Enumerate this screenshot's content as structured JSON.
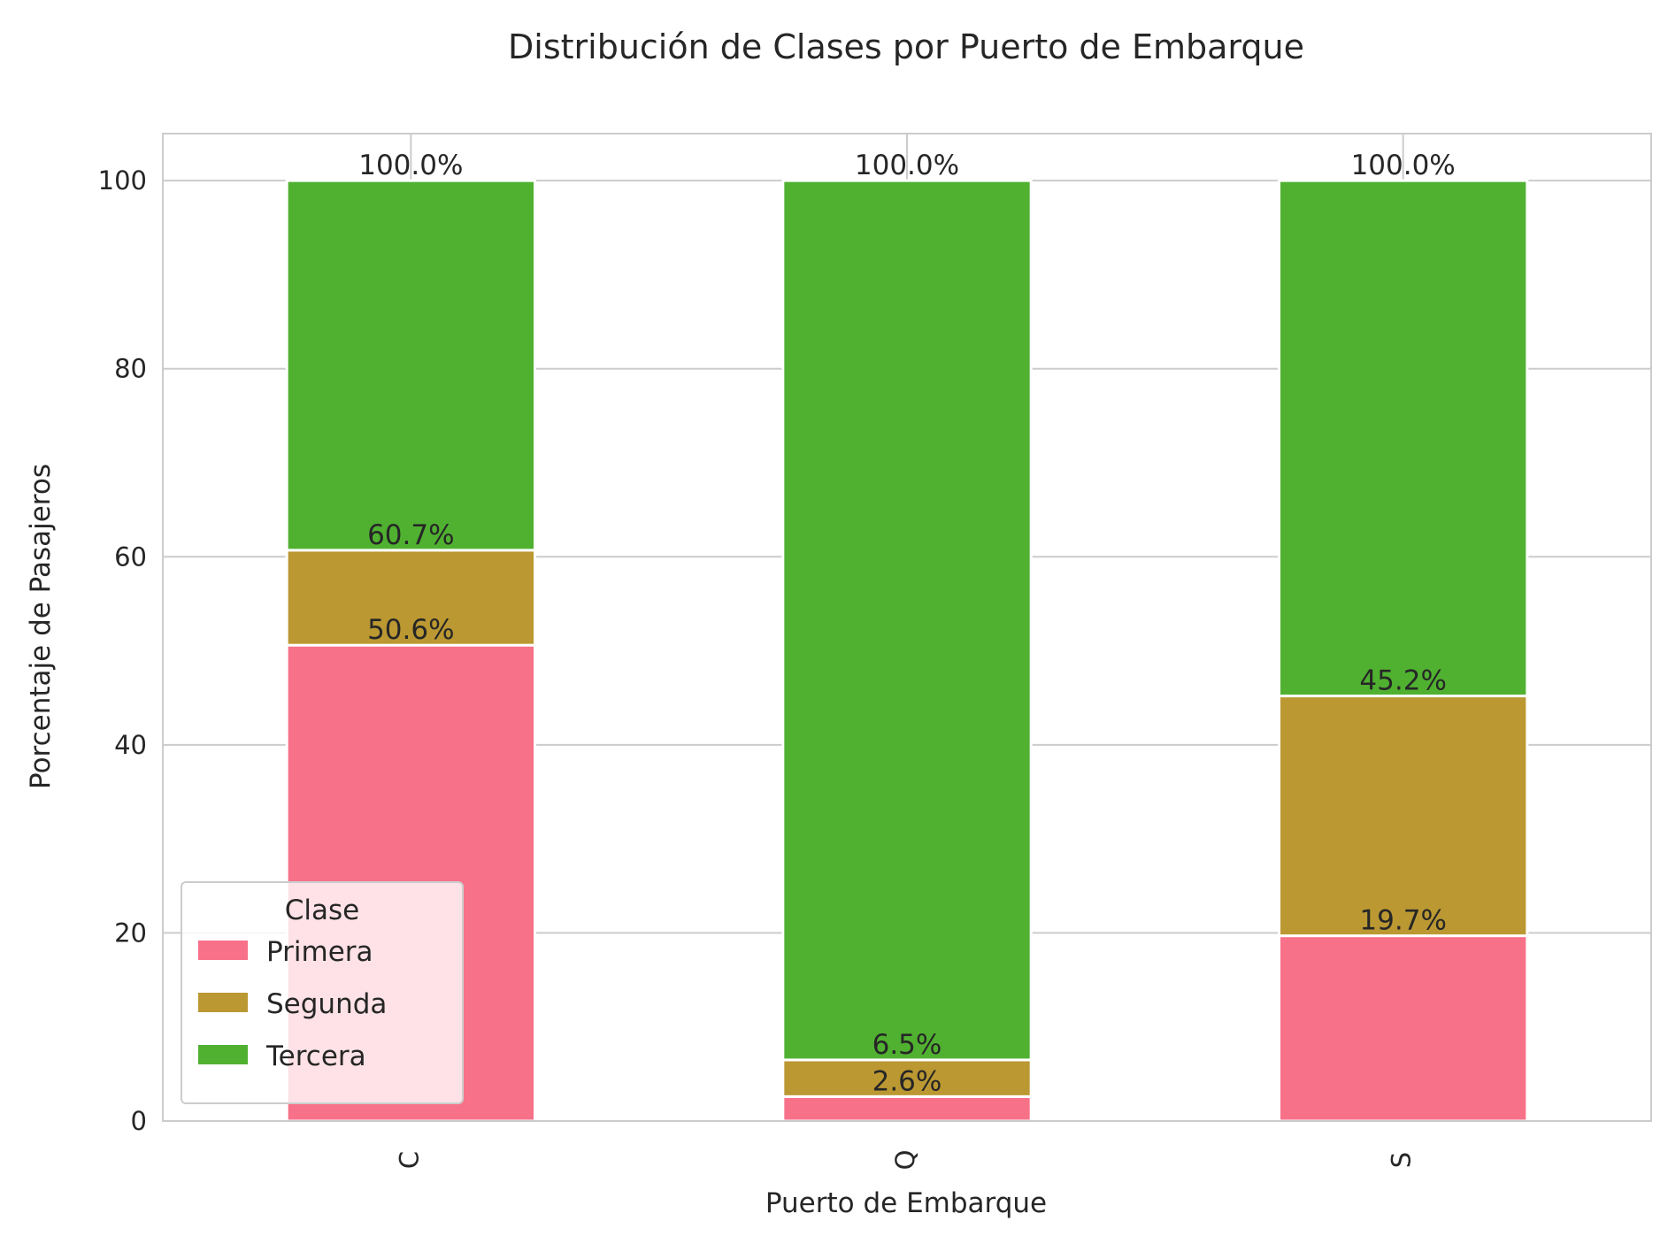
{
  "chart_data": {
    "type": "bar",
    "stacked": true,
    "title": "Distribución de Clases por Puerto de Embarque",
    "xlabel": "Puerto de Embarque",
    "ylabel": "Porcentaje de Pasajeros",
    "categories": [
      "C",
      "Q",
      "S"
    ],
    "ylim": [
      0,
      105
    ],
    "yticks": [
      0,
      20,
      40,
      60,
      80,
      100
    ],
    "grid": true,
    "legend": {
      "title": "Clase",
      "placement": "bottom-left"
    },
    "series": [
      {
        "name": "Primera",
        "color": "#f77189",
        "values": [
          50.6,
          2.6,
          19.7
        ]
      },
      {
        "name": "Segunda",
        "color": "#bb9832",
        "values": [
          10.1,
          3.9,
          25.5
        ]
      },
      {
        "name": "Tercera",
        "color": "#50b131",
        "values": [
          39.3,
          93.5,
          54.8
        ]
      }
    ],
    "data_labels": [
      [
        "50.6%",
        "2.6%",
        "19.7%"
      ],
      [
        "60.7%",
        "6.5%",
        "45.2%"
      ],
      [
        "100.0%",
        "100.0%",
        "100.0%"
      ]
    ]
  }
}
